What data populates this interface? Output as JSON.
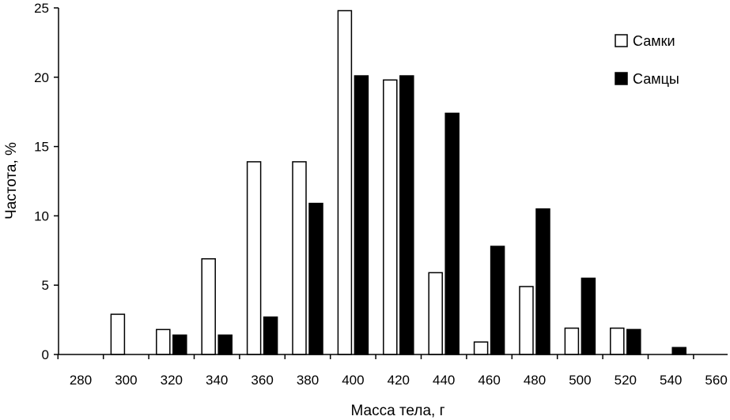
{
  "chart_data": {
    "type": "bar",
    "categories": [
      "280",
      "300",
      "320",
      "340",
      "360",
      "380",
      "400",
      "420",
      "440",
      "460",
      "480",
      "500",
      "520",
      "540",
      "560"
    ],
    "series": [
      {
        "name": "Самки",
        "values": [
          0,
          2.9,
          1.8,
          6.9,
          13.9,
          13.9,
          24.8,
          19.8,
          5.9,
          0.9,
          4.9,
          1.9,
          1.9,
          0,
          0
        ],
        "color": "#ffffff"
      },
      {
        "name": "Самцы",
        "values": [
          0,
          0,
          1.4,
          1.4,
          2.7,
          10.9,
          20.1,
          20.1,
          17.4,
          7.8,
          10.5,
          5.5,
          1.8,
          0.5,
          0
        ],
        "color": "#000000"
      }
    ],
    "xlabel": "Масса тела, г",
    "ylabel": "Частота, %",
    "ylim": [
      0,
      25
    ],
    "yticks": [
      0,
      5,
      10,
      15,
      20,
      25
    ],
    "grid": false,
    "legend_position": "top-right"
  }
}
